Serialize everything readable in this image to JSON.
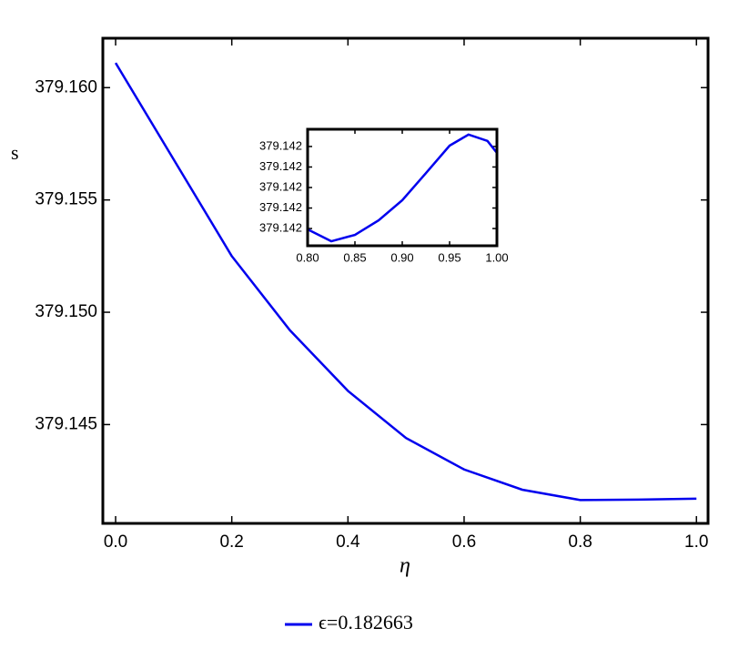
{
  "chart_data": [
    {
      "type": "line",
      "xlabel": "η",
      "ylabel": "s",
      "x": [
        0,
        0.1,
        0.2,
        0.3,
        0.4,
        0.5,
        0.6,
        0.7,
        0.8,
        0.9,
        1.0
      ],
      "series": [
        {
          "name": "ϵ=0.182663",
          "color": "#0000ee",
          "values": [
            379.1611,
            379.1568,
            379.1525,
            379.1492,
            379.1465,
            379.1444,
            379.143,
            379.1421,
            379.14164,
            379.14166,
            379.1417
          ]
        }
      ],
      "xlim": [
        -0.022,
        1.02
      ],
      "ylim": [
        379.1406,
        379.1622
      ],
      "xticks": [
        {
          "value": 0,
          "label": "0.0"
        },
        0.2,
        0.4,
        0.6,
        0.8,
        {
          "value": 1,
          "label": "1.0"
        }
      ],
      "yticks": [
        {
          "value": 379.16,
          "label": "379.160"
        },
        379.155,
        {
          "value": 379.15,
          "label": "379.150"
        },
        379.145
      ],
      "legend": "bottom"
    },
    {
      "type": "line",
      "x": [
        0.8,
        0.825,
        0.85,
        0.875,
        0.9,
        0.925,
        0.95,
        0.97,
        0.99,
        1.0
      ],
      "series": [
        {
          "color": "#0000ee",
          "values": [
            379.1416396,
            379.1416338,
            379.1416369,
            379.141644,
            379.1416538,
            379.141667,
            379.1416804,
            379.1416858,
            379.1416827,
            379.1416769
          ]
        }
      ],
      "xlim": [
        0.8,
        1.0
      ],
      "ylim": [
        379.1416316,
        379.1416884
      ],
      "xticks": [
        {
          "value": 0.8,
          "label": "0.80"
        },
        0.85,
        {
          "value": 0.9,
          "label": "0.90"
        },
        0.95,
        {
          "value": 1,
          "label": "1.00"
        }
      ],
      "yticks": [
        {
          "value": 379.14164,
          "label": "379.142"
        },
        {
          "value": 379.14165,
          "label": "379.142"
        },
        {
          "value": 379.14166,
          "label": "379.142"
        },
        {
          "value": 379.14167,
          "label": "379.142"
        },
        {
          "value": 379.14168,
          "label": "379.142"
        }
      ]
    }
  ]
}
